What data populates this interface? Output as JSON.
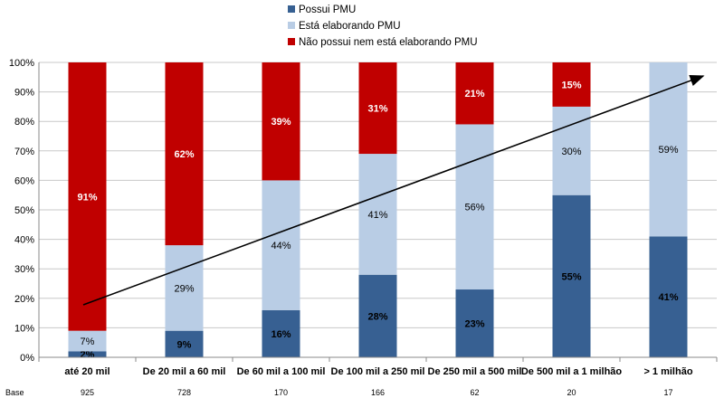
{
  "chart_data": {
    "type": "bar",
    "stacked": true,
    "categories": [
      "até 20 mil",
      "De 20 mil a 60 mil",
      "De 60 mil a 100 mil",
      "De 100 mil a 250 mil",
      "De 250 mil a 500 mil",
      "De 500 mil a 1 milhão",
      "> 1 milhão"
    ],
    "series": [
      {
        "name": "Possui PMU",
        "color": "#376092",
        "values": [
          2,
          9,
          16,
          28,
          23,
          55,
          41
        ]
      },
      {
        "name": "Está elaborando PMU",
        "color": "#B9CDE5",
        "values": [
          7,
          29,
          44,
          41,
          56,
          30,
          59
        ]
      },
      {
        "name": "Não possui nem está elaborando PMU",
        "color": "#C00000",
        "values": [
          91,
          62,
          39,
          31,
          21,
          15,
          0
        ]
      }
    ],
    "yticks": [
      "0%",
      "10%",
      "20%",
      "30%",
      "40%",
      "50%",
      "60%",
      "70%",
      "80%",
      "90%",
      "100%"
    ],
    "ylim": [
      0,
      100
    ],
    "grid": true,
    "legend": "top",
    "base_label": "Base",
    "base_values": [
      "925",
      "728",
      "170",
      "166",
      "62",
      "20",
      "17"
    ],
    "annotation": "upward trend arrow"
  }
}
